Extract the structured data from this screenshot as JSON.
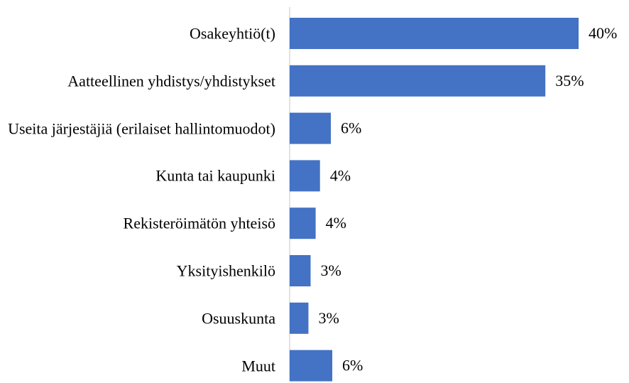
{
  "chart_data": {
    "type": "bar",
    "orientation": "horizontal",
    "categories": [
      "Osakeyhtiö(t)",
      "Aatteellinen yhdistys/yhdistykset",
      "Useita järjestäjiä (erilaiset hallintomuodot)",
      "Kunta tai kaupunki",
      "Rekisteröimätön yhteisö",
      "Yksityishenkilö",
      "Osuuskunta",
      "Muut"
    ],
    "values": [
      40,
      35.4,
      5.7,
      4.2,
      3.6,
      2.9,
      2.6,
      5.9
    ],
    "value_labels": [
      "40%",
      "35%",
      "6%",
      "4%",
      "4%",
      "3%",
      "3%",
      "6%"
    ],
    "color": "#4472c4",
    "xlim": [
      0,
      40
    ]
  }
}
